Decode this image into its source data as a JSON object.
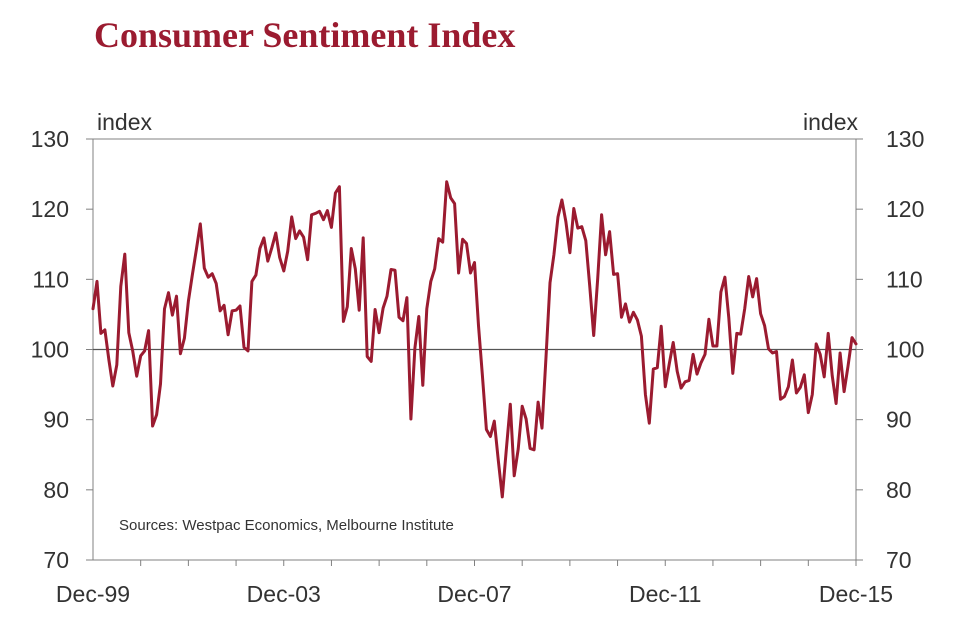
{
  "title": "Consumer Sentiment Index",
  "colors": {
    "title": "#9b1b30",
    "line": "#9b1b30",
    "axis": "#808080",
    "text": "#333333"
  },
  "chart_data": {
    "type": "line",
    "title": "Consumer Sentiment Index",
    "ylabel_left": "index",
    "ylabel_right": "index",
    "ylim": [
      70,
      130
    ],
    "yticks": [
      70,
      80,
      90,
      100,
      110,
      120,
      130
    ],
    "xlim": [
      1999.917,
      2015.917
    ],
    "xticks": [
      {
        "label": "Dec-99",
        "x": 1999.917
      },
      {
        "label": "Dec-03",
        "x": 2003.917
      },
      {
        "label": "Dec-07",
        "x": 2007.917
      },
      {
        "label": "Dec-11",
        "x": 2011.917
      },
      {
        "label": "Dec-15",
        "x": 2015.917
      }
    ],
    "reference_line": 100,
    "source": "Sources: Westpac Economics, Melbourne Institute",
    "series": [
      {
        "name": "Consumer Sentiment Index",
        "x": [
          1999.917,
          2000.0,
          2000.083,
          2000.167,
          2000.25,
          2000.333,
          2000.417,
          2000.5,
          2000.583,
          2000.667,
          2000.75,
          2000.833,
          2000.917,
          2001.0,
          2001.083,
          2001.167,
          2001.25,
          2001.333,
          2001.417,
          2001.5,
          2001.583,
          2001.667,
          2001.75,
          2001.833,
          2001.917,
          2002.0,
          2002.083,
          2002.167,
          2002.25,
          2002.333,
          2002.417,
          2002.5,
          2002.583,
          2002.667,
          2002.75,
          2002.833,
          2002.917,
          2003.0,
          2003.083,
          2003.167,
          2003.25,
          2003.333,
          2003.417,
          2003.5,
          2003.583,
          2003.667,
          2003.75,
          2003.833,
          2003.917,
          2004.0,
          2004.083,
          2004.167,
          2004.25,
          2004.333,
          2004.417,
          2004.5,
          2004.583,
          2004.667,
          2004.75,
          2004.833,
          2004.917,
          2005.0,
          2005.083,
          2005.167,
          2005.25,
          2005.333,
          2005.417,
          2005.5,
          2005.583,
          2005.667,
          2005.75,
          2005.833,
          2005.917,
          2006.0,
          2006.083,
          2006.167,
          2006.25,
          2006.333,
          2006.417,
          2006.5,
          2006.583,
          2006.667,
          2006.75,
          2006.833,
          2006.917,
          2007.0,
          2007.083,
          2007.167,
          2007.25,
          2007.333,
          2007.417,
          2007.5,
          2007.583,
          2007.667,
          2007.75,
          2007.833,
          2007.917,
          2008.0,
          2008.083,
          2008.167,
          2008.25,
          2008.333,
          2008.417,
          2008.5,
          2008.583,
          2008.667,
          2008.75,
          2008.833,
          2008.917,
          2009.0,
          2009.083,
          2009.167,
          2009.25,
          2009.333,
          2009.417,
          2009.5,
          2009.583,
          2009.667,
          2009.75,
          2009.833,
          2009.917,
          2010.0,
          2010.083,
          2010.167,
          2010.25,
          2010.333,
          2010.417,
          2010.5,
          2010.583,
          2010.667,
          2010.75,
          2010.833,
          2010.917,
          2011.0,
          2011.083,
          2011.167,
          2011.25,
          2011.333,
          2011.417,
          2011.5,
          2011.583,
          2011.667,
          2011.75,
          2011.833,
          2011.917,
          2012.0,
          2012.083,
          2012.167,
          2012.25,
          2012.333,
          2012.417,
          2012.5,
          2012.583,
          2012.667,
          2012.75,
          2012.833,
          2012.917,
          2013.0,
          2013.083,
          2013.167,
          2013.25,
          2013.333,
          2013.417,
          2013.5,
          2013.583,
          2013.667,
          2013.75,
          2013.833,
          2013.917,
          2014.0,
          2014.083,
          2014.167,
          2014.25,
          2014.333,
          2014.417,
          2014.5,
          2014.583,
          2014.667,
          2014.75,
          2014.833,
          2014.917,
          2015.0,
          2015.083,
          2015.167,
          2015.25,
          2015.333,
          2015.417,
          2015.5,
          2015.583,
          2015.667,
          2015.75,
          2015.833,
          2015.917
        ],
        "values": [
          105.8,
          109.7,
          102.3,
          102.8,
          98.5,
          94.8,
          97.8,
          109.0,
          113.6,
          102.4,
          99.8,
          96.2,
          99.1,
          99.8,
          102.7,
          89.1,
          90.7,
          95.1,
          105.8,
          108.1,
          104.9,
          107.6,
          99.4,
          101.6,
          106.9,
          110.6,
          114.2,
          117.9,
          111.6,
          110.3,
          110.8,
          109.4,
          105.5,
          106.3,
          102.1,
          105.5,
          105.6,
          106.2,
          100.3,
          99.8,
          109.7,
          110.6,
          114.4,
          115.9,
          112.6,
          114.5,
          116.6,
          113.1,
          111.2,
          114.0,
          118.9,
          115.8,
          116.9,
          116.0,
          112.8,
          119.2,
          119.4,
          119.7,
          118.5,
          119.8,
          117.4,
          122.3,
          123.2,
          104.0,
          106.1,
          114.4,
          111.5,
          105.6,
          115.9,
          99.0,
          98.3,
          105.7,
          102.4,
          105.9,
          107.6,
          111.4,
          111.3,
          104.6,
          104.1,
          107.4,
          90.1,
          100.2,
          104.7,
          94.9,
          105.8,
          109.7,
          111.5,
          115.8,
          115.3,
          123.9,
          121.6,
          120.8,
          110.9,
          115.7,
          115.1,
          110.9,
          112.4,
          103.4,
          96.3,
          88.6,
          87.6,
          89.8,
          84.2,
          79.0,
          85.7,
          92.2,
          82.0,
          85.8,
          91.9,
          90.1,
          85.9,
          85.7,
          92.5,
          88.8,
          98.9,
          109.5,
          113.5,
          118.9,
          121.3,
          118.2,
          113.8,
          120.1,
          117.3,
          117.5,
          115.5,
          109.1,
          102.0,
          110.1,
          119.2,
          113.5,
          116.8,
          110.7,
          110.8,
          104.6,
          106.5,
          103.9,
          105.3,
          104.2,
          101.9,
          93.6,
          89.5,
          97.2,
          97.4,
          103.3,
          94.7,
          97.9,
          101.0,
          96.9,
          94.5,
          95.4,
          95.6,
          99.3,
          96.5,
          98.1,
          99.3,
          104.3,
          100.5,
          100.5,
          108.2,
          110.3,
          104.5,
          96.6,
          102.3,
          102.2,
          105.8,
          110.4,
          107.5,
          110.1,
          105.1,
          103.4,
          100.1,
          99.5,
          99.7,
          92.9,
          93.3,
          94.7,
          98.5,
          93.8,
          94.6,
          96.4,
          91.0,
          93.6,
          100.8,
          99.3,
          96.1,
          102.3,
          96.3,
          92.3,
          99.5,
          94.0,
          97.6,
          101.7,
          100.8
        ]
      }
    ]
  }
}
